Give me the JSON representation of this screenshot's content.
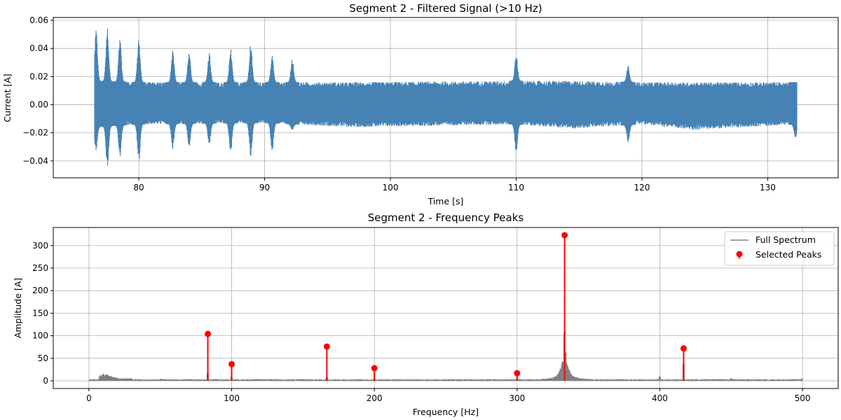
{
  "chart_data": [
    {
      "type": "line",
      "title": "Segment 2 - Filtered Signal (>10 Hz)",
      "xlabel": "Time [s]",
      "ylabel": "Current [A]",
      "xlim": [
        73.2,
        135.6
      ],
      "ylim": [
        -0.052,
        0.062
      ],
      "xticks": [
        80,
        90,
        100,
        110,
        120,
        130
      ],
      "yticks": [
        -0.04,
        -0.02,
        0.0,
        0.02,
        0.04,
        0.06
      ],
      "ytick_labels": [
        "−0.04",
        "−0.02",
        "0.00",
        "0.02",
        "0.04",
        "0.06"
      ],
      "grid": true,
      "series": [
        {
          "color": "#4682b4",
          "time_range": [
            76.5,
            132.3
          ],
          "noise_envelope": [
            {
              "t": 76.5,
              "upper": 0.017,
              "lower": -0.016
            },
            {
              "t": 80,
              "upper": 0.016,
              "lower": -0.014
            },
            {
              "t": 90,
              "upper": 0.016,
              "lower": -0.013
            },
            {
              "t": 97,
              "upper": 0.016,
              "lower": -0.016
            },
            {
              "t": 110,
              "upper": 0.017,
              "lower": -0.014
            },
            {
              "t": 114.5,
              "upper": 0.017,
              "lower": -0.017
            },
            {
              "t": 120,
              "upper": 0.016,
              "lower": -0.014
            },
            {
              "t": 124,
              "upper": 0.016,
              "lower": -0.018
            },
            {
              "t": 132.3,
              "upper": 0.016,
              "lower": -0.014
            }
          ],
          "spikes": [
            {
              "t": 76.6,
              "max": 0.054,
              "min": -0.033
            },
            {
              "t": 77.5,
              "max": 0.057,
              "min": -0.046
            },
            {
              "t": 78.5,
              "max": 0.047,
              "min": -0.037
            },
            {
              "t": 80.0,
              "max": 0.049,
              "min": -0.042
            },
            {
              "t": 82.7,
              "max": 0.04,
              "min": -0.032
            },
            {
              "t": 84.0,
              "max": 0.039,
              "min": -0.03
            },
            {
              "t": 85.6,
              "max": 0.037,
              "min": -0.029
            },
            {
              "t": 87.3,
              "max": 0.04,
              "min": -0.036
            },
            {
              "t": 88.9,
              "max": 0.044,
              "min": -0.038
            },
            {
              "t": 90.6,
              "max": 0.035,
              "min": -0.034
            },
            {
              "t": 92.2,
              "max": 0.033,
              "min": -0.018
            },
            {
              "t": 110.0,
              "max": 0.037,
              "min": -0.034
            },
            {
              "t": 118.9,
              "max": 0.028,
              "min": -0.027
            },
            {
              "t": 132.2,
              "max": 0.016,
              "min": -0.024
            }
          ]
        }
      ]
    },
    {
      "type": "line",
      "title": "Segment 2 - Frequency Peaks",
      "xlabel": "Frequency [Hz]",
      "ylabel": "Amplitude [A]",
      "xlim": [
        -25,
        525
      ],
      "ylim": [
        -17,
        340
      ],
      "xticks": [
        0,
        100,
        200,
        300,
        400,
        500
      ],
      "yticks": [
        0,
        50,
        100,
        150,
        200,
        250,
        300
      ],
      "grid": true,
      "legend_position": "top-right",
      "series": [
        {
          "name": "Full Spectrum",
          "color": "#808080",
          "spectrum_features": [
            {
              "f": 10,
              "amp": 16
            },
            {
              "f": 12,
              "amp": 14
            },
            {
              "f": 50,
              "amp": 5
            },
            {
              "f": 83.3,
              "amp": 18
            },
            {
              "f": 100,
              "amp": 8
            },
            {
              "f": 150,
              "amp": 4
            },
            {
              "f": 166.7,
              "amp": 10
            },
            {
              "f": 200,
              "amp": 6
            },
            {
              "f": 250,
              "amp": 3
            },
            {
              "f": 300,
              "amp": 5
            },
            {
              "f": 333.3,
              "amp": 120
            },
            {
              "f": 334,
              "amp": 65
            },
            {
              "f": 400,
              "amp": 10
            },
            {
              "f": 416.7,
              "amp": 38
            },
            {
              "f": 450,
              "amp": 6
            },
            {
              "f": 500,
              "amp": 6
            }
          ]
        },
        {
          "name": "Selected Peaks",
          "type": "stem",
          "color": "#ff0000",
          "points": [
            {
              "x": 83.3,
              "y": 104
            },
            {
              "x": 100,
              "y": 37
            },
            {
              "x": 166.7,
              "y": 76
            },
            {
              "x": 200,
              "y": 28
            },
            {
              "x": 300,
              "y": 17
            },
            {
              "x": 333.3,
              "y": 323
            },
            {
              "x": 416.7,
              "y": 72
            }
          ]
        }
      ]
    }
  ]
}
